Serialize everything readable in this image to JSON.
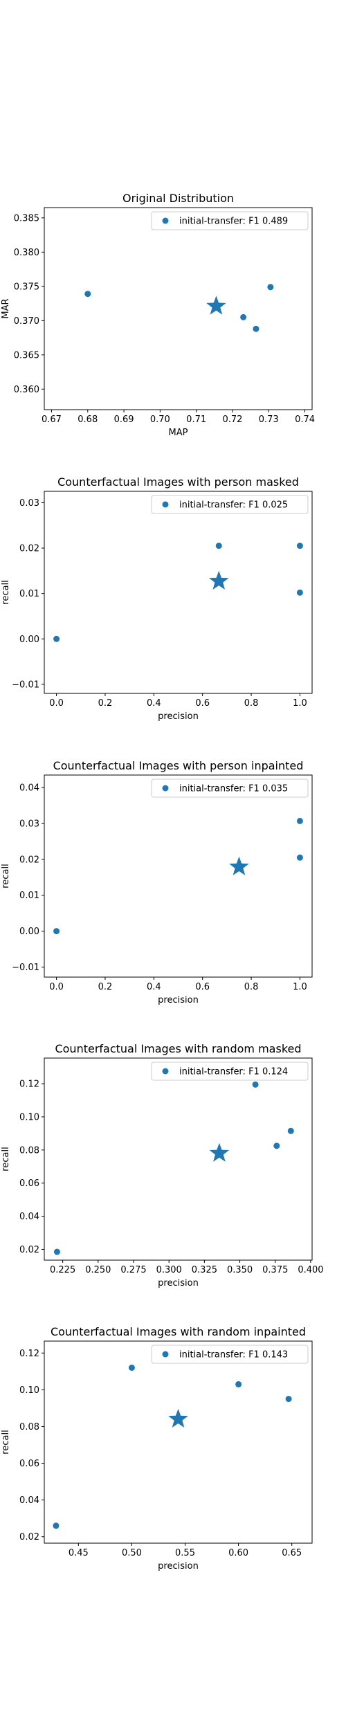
{
  "chart_data": [
    {
      "type": "scatter",
      "title": "Original Distribution",
      "xlabel": "MAP",
      "ylabel": "MAR",
      "xlim": [
        0.668,
        0.742
      ],
      "ylim": [
        0.357,
        0.3865
      ],
      "xticks": [
        0.67,
        0.68,
        0.69,
        0.7,
        0.71,
        0.72,
        0.73,
        0.74
      ],
      "xtick_labels": [
        "0.67",
        "0.68",
        "0.69",
        "0.70",
        "0.71",
        "0.72",
        "0.73",
        "0.74"
      ],
      "yticks": [
        0.36,
        0.365,
        0.37,
        0.375,
        0.38,
        0.385
      ],
      "ytick_labels": [
        "0.360",
        "0.365",
        "0.370",
        "0.375",
        "0.380",
        "0.385"
      ],
      "legend": {
        "label": "initial-transfer: F1 0.489",
        "placement": "top-right"
      },
      "color": "#1f77b4",
      "series": [
        {
          "name": "initial-transfer: F1 0.489",
          "points": [
            [
              0.68,
              0.3739
            ],
            [
              0.723,
              0.3705
            ],
            [
              0.7265,
              0.3688
            ],
            [
              0.7305,
              0.3749
            ]
          ]
        }
      ],
      "star": [
        0.7155,
        0.3721
      ]
    },
    {
      "type": "scatter",
      "title": "Counterfactual Images with person masked",
      "xlabel": "precision",
      "ylabel": "recall",
      "xlim": [
        -0.05,
        1.05
      ],
      "ylim": [
        -0.012,
        0.0325
      ],
      "xticks": [
        0.0,
        0.2,
        0.4,
        0.6,
        0.8,
        1.0
      ],
      "xtick_labels": [
        "0.0",
        "0.2",
        "0.4",
        "0.6",
        "0.8",
        "1.0"
      ],
      "yticks": [
        -0.01,
        0.0,
        0.01,
        0.02,
        0.03
      ],
      "ytick_labels": [
        "−0.01",
        "0.00",
        "0.01",
        "0.02",
        "0.03"
      ],
      "legend": {
        "label": "initial-transfer: F1 0.025",
        "placement": "top-right"
      },
      "color": "#1f77b4",
      "series": [
        {
          "name": "initial-transfer: F1 0.025",
          "points": [
            [
              0.0,
              0.0
            ],
            [
              0.667,
              0.0205
            ],
            [
              1.0,
              0.0205
            ],
            [
              1.0,
              0.0102
            ]
          ]
        }
      ],
      "star": [
        0.667,
        0.0127
      ]
    },
    {
      "type": "scatter",
      "title": "Counterfactual Images with person inpainted",
      "xlabel": "precision",
      "ylabel": "recall",
      "xlim": [
        -0.05,
        1.05
      ],
      "ylim": [
        -0.0128,
        0.0435
      ],
      "xticks": [
        0.0,
        0.2,
        0.4,
        0.6,
        0.8,
        1.0
      ],
      "xtick_labels": [
        "0.0",
        "0.2",
        "0.4",
        "0.6",
        "0.8",
        "1.0"
      ],
      "yticks": [
        -0.01,
        0.0,
        0.01,
        0.02,
        0.03,
        0.04
      ],
      "ytick_labels": [
        "−0.01",
        "0.00",
        "0.01",
        "0.02",
        "0.03",
        "0.04"
      ],
      "legend": {
        "label": "initial-transfer: F1 0.035",
        "placement": "top-right"
      },
      "color": "#1f77b4",
      "series": [
        {
          "name": "initial-transfer: F1 0.035",
          "points": [
            [
              0.0,
              0.0
            ],
            [
              1.0,
              0.0307
            ],
            [
              1.0,
              0.0205
            ]
          ]
        }
      ],
      "star": [
        0.75,
        0.0179
      ]
    },
    {
      "type": "scatter",
      "title": "Counterfactual Images with random masked",
      "xlabel": "precision",
      "ylabel": "recall",
      "xlim": [
        0.212,
        0.401
      ],
      "ylim": [
        0.0135,
        0.1355
      ],
      "xticks": [
        0.225,
        0.25,
        0.275,
        0.3,
        0.325,
        0.35,
        0.375,
        0.4
      ],
      "xtick_labels": [
        "0.225",
        "0.250",
        "0.275",
        "0.300",
        "0.325",
        "0.350",
        "0.375",
        "0.400"
      ],
      "yticks": [
        0.02,
        0.04,
        0.06,
        0.08,
        0.1,
        0.12
      ],
      "ytick_labels": [
        "0.02",
        "0.04",
        "0.06",
        "0.08",
        "0.10",
        "0.12"
      ],
      "legend": {
        "label": "initial-transfer: F1 0.124",
        "placement": "top-right"
      },
      "color": "#1f77b4",
      "series": [
        {
          "name": "initial-transfer: F1 0.124",
          "points": [
            [
              0.221,
              0.0185
            ],
            [
              0.361,
              0.1195
            ],
            [
              0.376,
              0.0825
            ],
            [
              0.386,
              0.0915
            ]
          ]
        }
      ],
      "star": [
        0.3355,
        0.078
      ]
    },
    {
      "type": "scatter",
      "title": "Counterfactual Images with random inpainted",
      "xlabel": "precision",
      "ylabel": "recall",
      "xlim": [
        0.418,
        0.669
      ],
      "ylim": [
        0.0165,
        0.1265
      ],
      "xticks": [
        0.45,
        0.5,
        0.55,
        0.6,
        0.65
      ],
      "xtick_labels": [
        "0.45",
        "0.50",
        "0.55",
        "0.60",
        "0.65"
      ],
      "yticks": [
        0.02,
        0.04,
        0.06,
        0.08,
        0.1,
        0.12
      ],
      "ytick_labels": [
        "0.02",
        "0.04",
        "0.06",
        "0.08",
        "0.10",
        "0.12"
      ],
      "legend": {
        "label": "initial-transfer: F1 0.143",
        "placement": "top-right"
      },
      "color": "#1f77b4",
      "series": [
        {
          "name": "initial-transfer: F1 0.143",
          "points": [
            [
              0.429,
              0.026
            ],
            [
              0.5,
              0.112
            ],
            [
              0.6,
              0.103
            ],
            [
              0.647,
              0.095
            ]
          ]
        }
      ],
      "star": [
        0.5435,
        0.084
      ]
    }
  ]
}
